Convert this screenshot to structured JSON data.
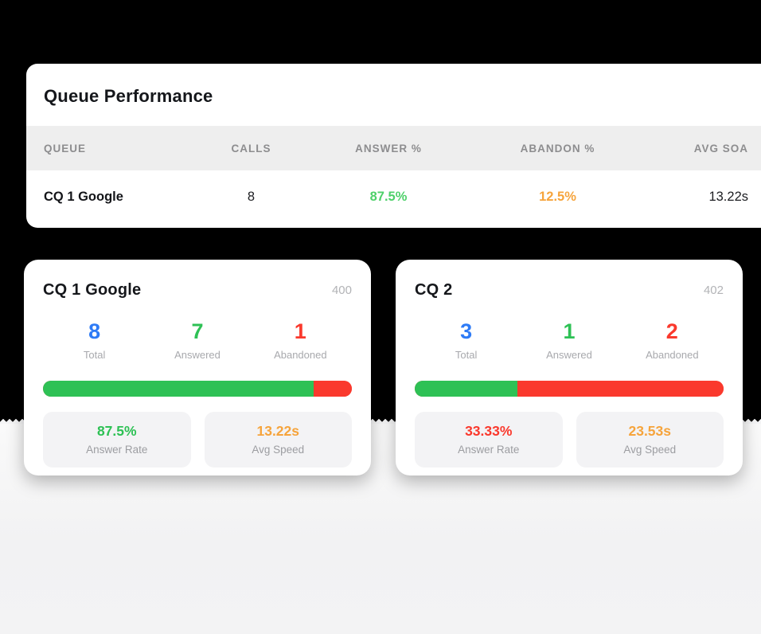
{
  "colors": {
    "bg-top": "#000000",
    "blue": "#2e7bf6",
    "green": "#2ec155",
    "green-soft": "#4ed06a",
    "red": "#fa392d",
    "orange": "#f6a43c"
  },
  "table": {
    "title": "Queue Performance",
    "columns": {
      "queue": "QUEUE",
      "calls": "CALLS",
      "answer": "ANSWER %",
      "abandon": "ABANDON %",
      "avg_soa": "AVG SOA"
    },
    "row": {
      "queue": "CQ 1 Google",
      "calls": "8",
      "answer": "87.5%",
      "abandon": "12.5%",
      "avg_soa": "13.22s"
    }
  },
  "labels": {
    "total": "Total",
    "answered": "Answered",
    "abandoned": "Abandoned",
    "answer_rate": "Answer Rate",
    "avg_speed": "Avg Speed"
  },
  "queue_cards": [
    {
      "title": "CQ 1 Google",
      "badge": "400",
      "total": "8",
      "answered": "7",
      "abandoned": "1",
      "answer_pct": 87.5,
      "answer_rate": "87.5%",
      "answer_rate_color": "#2ec155",
      "avg_speed": "13.22s",
      "avg_speed_color": "#f6a43c"
    },
    {
      "title": "CQ 2",
      "badge": "402",
      "total": "3",
      "answered": "1",
      "abandoned": "2",
      "answer_pct": 33.33,
      "answer_rate": "33.33%",
      "answer_rate_color": "#fa392d",
      "avg_speed": "23.53s",
      "avg_speed_color": "#f6a43c"
    }
  ]
}
